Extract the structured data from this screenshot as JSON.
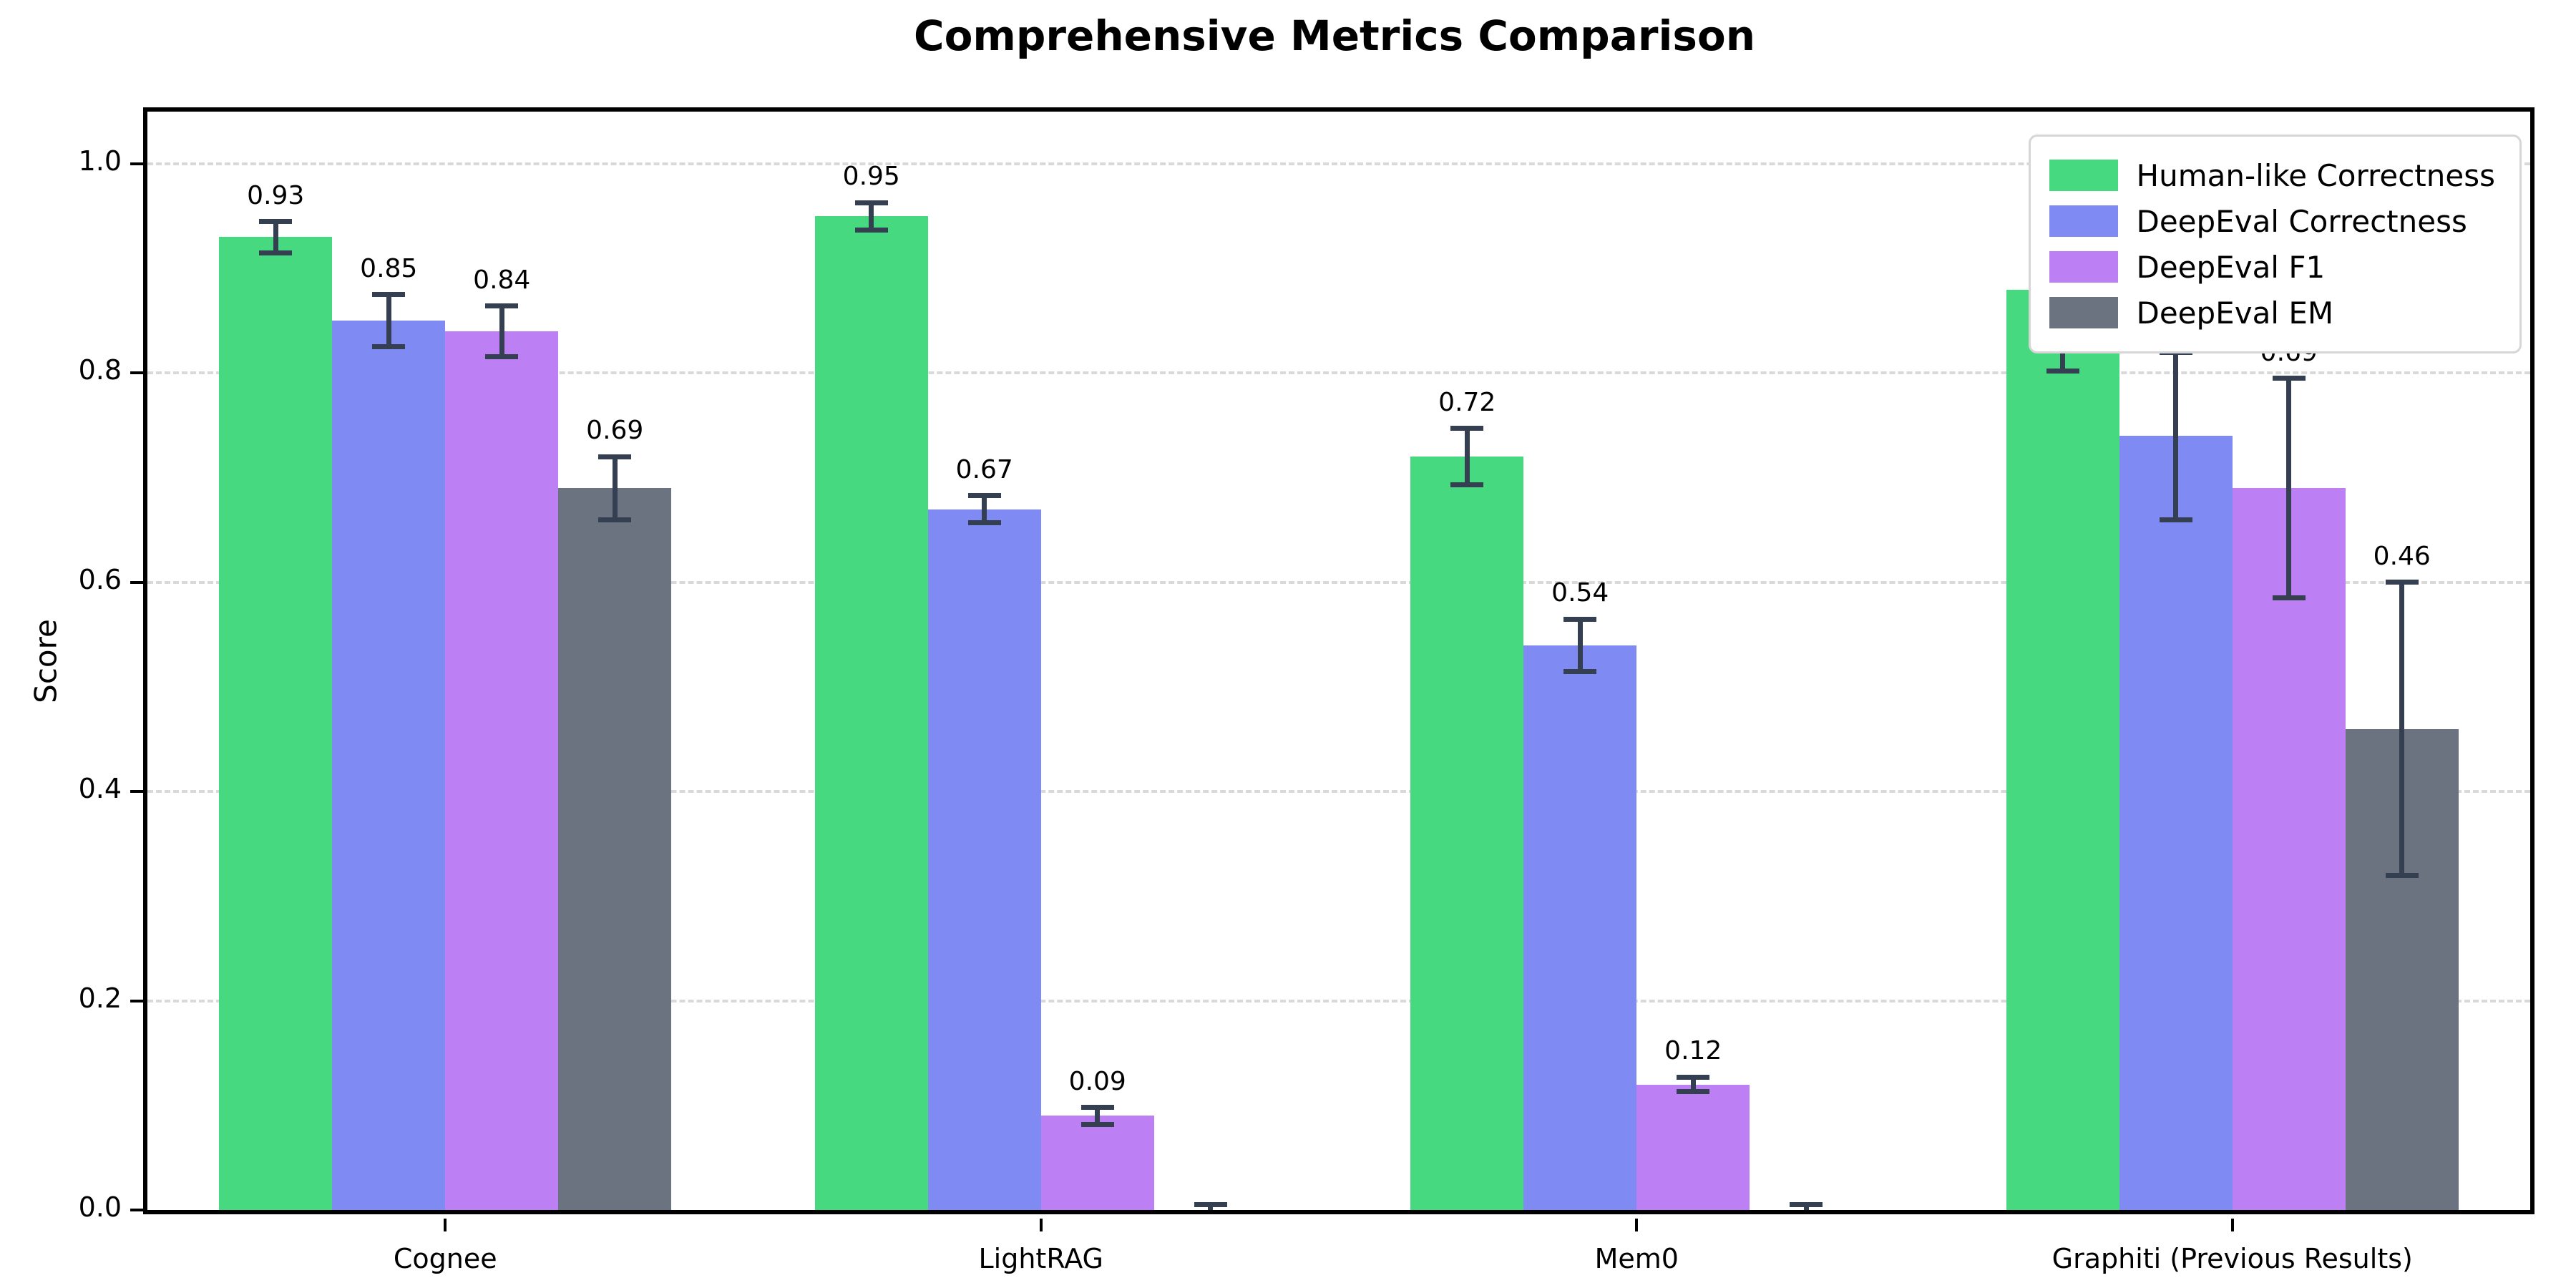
{
  "title": "Comprehensive Metrics Comparison",
  "chart_data": {
    "type": "bar",
    "title": "Comprehensive Metrics Comparison",
    "xlabel": "",
    "ylabel": "Score",
    "ylim": [
      0,
      1.05
    ],
    "y_ticks": [
      0.0,
      0.2,
      0.4,
      0.6,
      0.8,
      1.0
    ],
    "y_tick_labels": [
      "0.0",
      "0.2",
      "0.4",
      "0.6",
      "0.8",
      "1.0"
    ],
    "grid": "horizontal-dashed",
    "legend_position": "upper right",
    "categories": [
      "Cognee",
      "LightRAG",
      "Mem0",
      "Graphiti (Previous Results)"
    ],
    "series": [
      {
        "name": "Human-like Correctness",
        "color": "#47d980",
        "values": [
          0.93,
          0.95,
          0.72,
          0.88
        ],
        "errors": [
          0.015,
          0.013,
          0.027,
          0.078
        ],
        "bar_labels": [
          "0.93",
          "0.95",
          "0.72",
          "0.88"
        ]
      },
      {
        "name": "DeepEval Correctness",
        "color": "#7f8af2",
        "values": [
          0.85,
          0.67,
          0.54,
          0.74
        ],
        "errors": [
          0.025,
          0.013,
          0.025,
          0.08
        ],
        "bar_labels": [
          "0.85",
          "0.67",
          "0.54",
          "0.74"
        ]
      },
      {
        "name": "DeepEval F1",
        "color": "#bd80f4",
        "values": [
          0.84,
          0.09,
          0.12,
          0.69
        ],
        "errors": [
          0.024,
          0.008,
          0.007,
          0.105
        ],
        "bar_labels": [
          "0.84",
          "0.09",
          "0.12",
          "0.69"
        ]
      },
      {
        "name": "DeepEval EM",
        "color": "#6b7280",
        "values": [
          0.69,
          0.0,
          0.0,
          0.46
        ],
        "errors": [
          0.03,
          0.005,
          0.005,
          0.14
        ],
        "bar_labels": [
          "0.69",
          "",
          "",
          "0.46"
        ]
      }
    ],
    "error_bar_color": "#343f52",
    "gridline_color": "#d9d9d9",
    "axis_color": "#000000"
  }
}
